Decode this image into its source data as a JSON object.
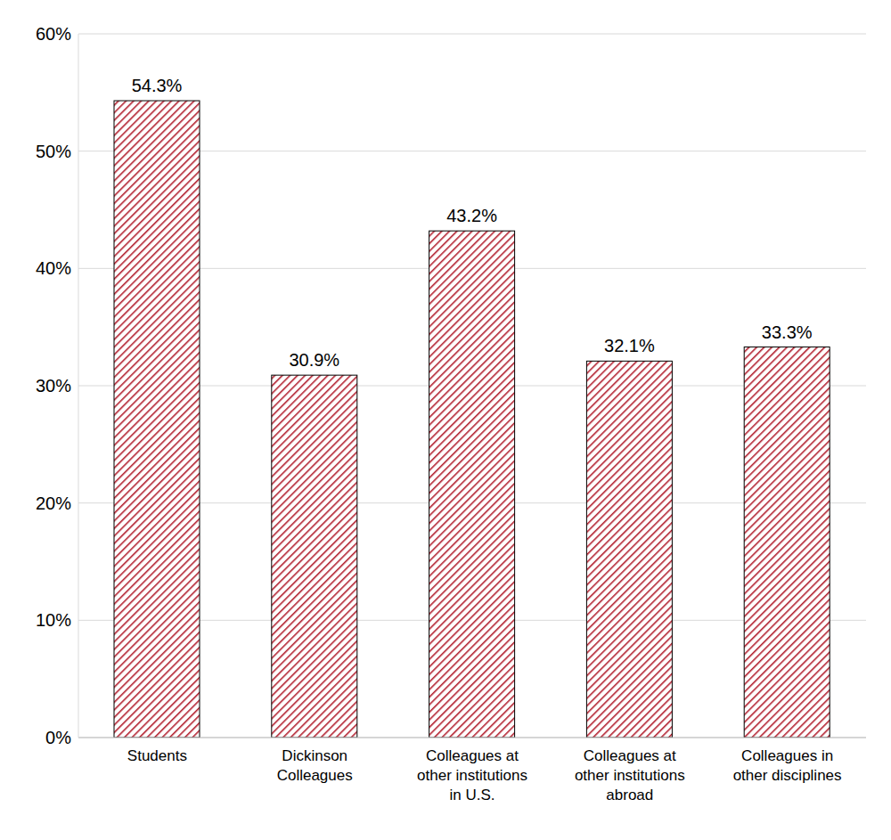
{
  "chart_data": {
    "type": "bar",
    "categories": [
      "Students",
      "Dickinson Colleagues",
      "Colleagues at other institutions in U.S.",
      "Colleagues at other institutions abroad",
      "Colleagues in other disciplines"
    ],
    "values": [
      54.3,
      30.9,
      43.2,
      32.1,
      33.3
    ],
    "value_labels": [
      "54.3%",
      "30.9%",
      "43.2%",
      "32.1%",
      "33.3%"
    ],
    "color": "#b2202f",
    "ylim": [
      0,
      60
    ],
    "yticks": [
      {
        "value": 0,
        "label": "0%"
      },
      {
        "value": 10,
        "label": "10%"
      },
      {
        "value": 20,
        "label": "20%"
      },
      {
        "value": 30,
        "label": "30%"
      },
      {
        "value": 40,
        "label": "40%"
      },
      {
        "value": 50,
        "label": "50%"
      },
      {
        "value": 60,
        "label": "60%"
      }
    ],
    "grid": true,
    "data_labels": true
  }
}
